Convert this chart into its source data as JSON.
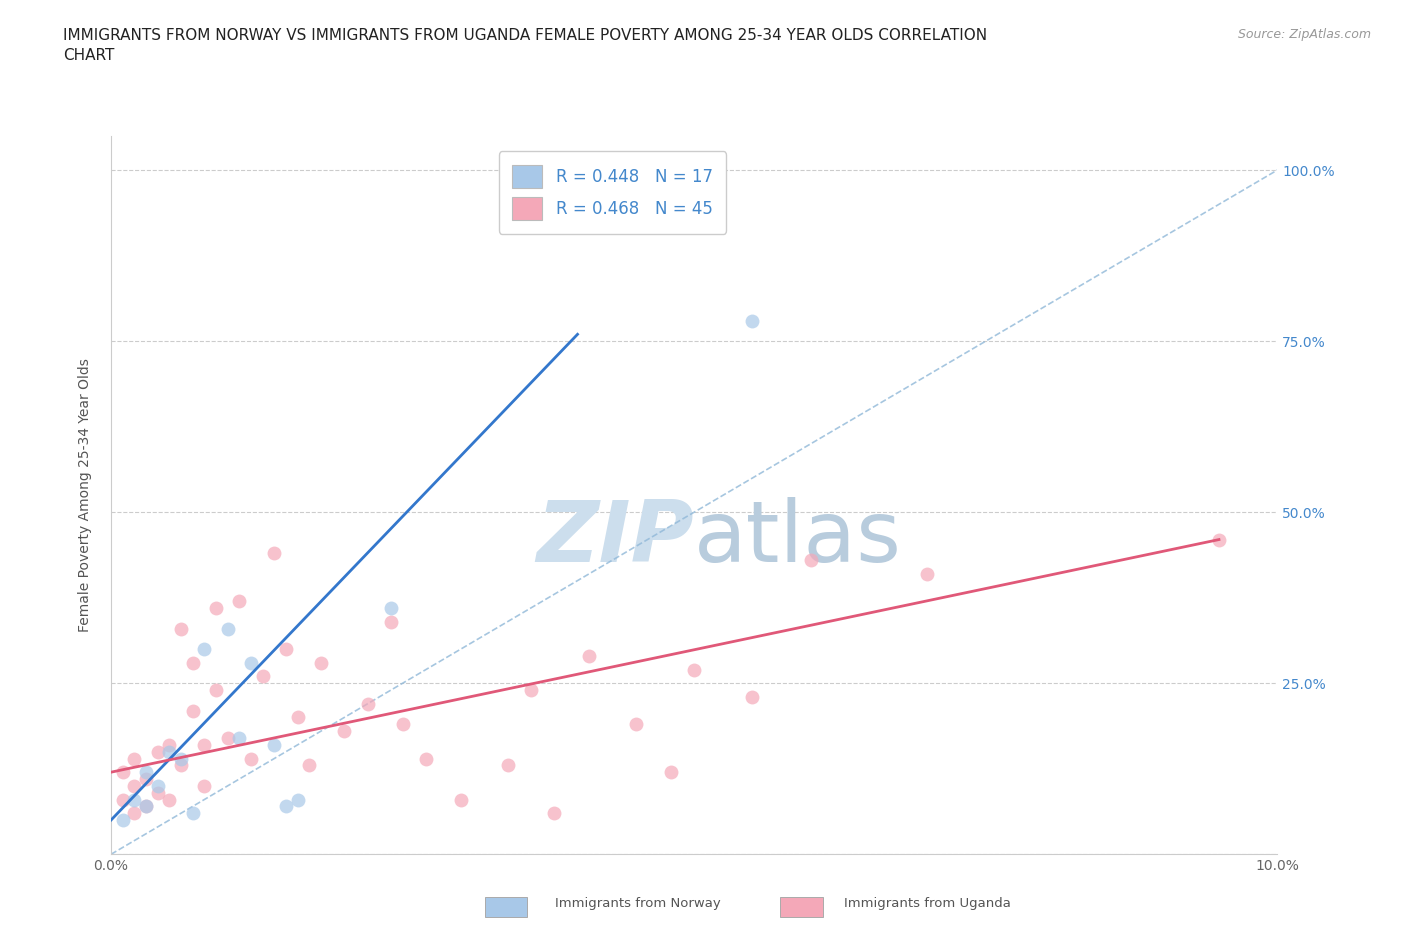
{
  "title": "IMMIGRANTS FROM NORWAY VS IMMIGRANTS FROM UGANDA FEMALE POVERTY AMONG 25-34 YEAR OLDS CORRELATION\nCHART",
  "source": "Source: ZipAtlas.com",
  "ylabel": "Female Poverty Among 25-34 Year Olds",
  "xlim": [
    0.0,
    0.1
  ],
  "ylim": [
    0.0,
    1.05
  ],
  "ytick_positions": [
    0.0,
    0.25,
    0.5,
    0.75,
    1.0
  ],
  "ytick_labels": [
    "",
    "25.0%",
    "50.0%",
    "75.0%",
    "100.0%"
  ],
  "norway_R": 0.448,
  "norway_N": 17,
  "uganda_R": 0.468,
  "uganda_N": 45,
  "norway_color": "#a8c8e8",
  "uganda_color": "#f4a8b8",
  "norway_line_color": "#3377cc",
  "uganda_line_color": "#e05878",
  "diagonal_color": "#90b8d8",
  "norway_scatter_x": [
    0.001,
    0.002,
    0.003,
    0.003,
    0.004,
    0.005,
    0.006,
    0.007,
    0.008,
    0.01,
    0.011,
    0.012,
    0.014,
    0.015,
    0.016,
    0.024,
    0.055
  ],
  "norway_scatter_y": [
    0.05,
    0.08,
    0.07,
    0.12,
    0.1,
    0.15,
    0.14,
    0.06,
    0.3,
    0.33,
    0.17,
    0.28,
    0.16,
    0.07,
    0.08,
    0.36,
    0.78
  ],
  "uganda_scatter_x": [
    0.001,
    0.001,
    0.002,
    0.002,
    0.002,
    0.003,
    0.003,
    0.004,
    0.004,
    0.005,
    0.005,
    0.006,
    0.006,
    0.007,
    0.007,
    0.008,
    0.008,
    0.009,
    0.009,
    0.01,
    0.011,
    0.012,
    0.013,
    0.014,
    0.015,
    0.016,
    0.017,
    0.018,
    0.02,
    0.022,
    0.024,
    0.025,
    0.027,
    0.03,
    0.034,
    0.036,
    0.038,
    0.041,
    0.045,
    0.048,
    0.05,
    0.055,
    0.06,
    0.07,
    0.095
  ],
  "uganda_scatter_y": [
    0.08,
    0.12,
    0.06,
    0.1,
    0.14,
    0.07,
    0.11,
    0.09,
    0.15,
    0.08,
    0.16,
    0.33,
    0.13,
    0.21,
    0.28,
    0.1,
    0.16,
    0.36,
    0.24,
    0.17,
    0.37,
    0.14,
    0.26,
    0.44,
    0.3,
    0.2,
    0.13,
    0.28,
    0.18,
    0.22,
    0.34,
    0.19,
    0.14,
    0.08,
    0.13,
    0.24,
    0.06,
    0.29,
    0.19,
    0.12,
    0.27,
    0.23,
    0.43,
    0.41,
    0.46
  ],
  "background_color": "#ffffff",
  "grid_color": "#cccccc",
  "title_fontsize": 11,
  "axis_label_fontsize": 10,
  "tick_fontsize": 10,
  "legend_fontsize": 12,
  "source_fontsize": 9,
  "marker_size": 100,
  "right_ytick_color": "#4488cc",
  "norway_line_x0": 0.0,
  "norway_line_x1": 0.04,
  "norway_line_y0": 0.05,
  "norway_line_y1": 0.76,
  "uganda_line_x0": 0.0,
  "uganda_line_x1": 0.095,
  "uganda_line_y0": 0.12,
  "uganda_line_y1": 0.46
}
